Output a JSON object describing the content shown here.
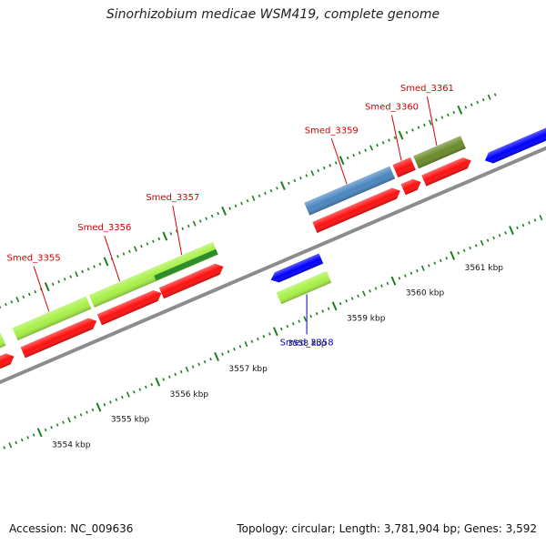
{
  "title": "Sinorhizobium medicae WSM419, complete genome",
  "footer": {
    "accession": "Accession: NC_009636",
    "info": "Topology: circular; Length: 3,781,904 bp; Genes: 3,592"
  },
  "scale": {
    "unit": "kbp",
    "ticks": [
      {
        "pos_kbp": 3554,
        "label": "3554 kbp"
      },
      {
        "pos_kbp": 3555,
        "label": "3555 kbp"
      },
      {
        "pos_kbp": 3556,
        "label": "3556 kbp"
      },
      {
        "pos_kbp": 3557,
        "label": "3557 kbp"
      },
      {
        "pos_kbp": 3558,
        "label": "3558 kbp"
      },
      {
        "pos_kbp": 3559,
        "label": "3559 kbp"
      },
      {
        "pos_kbp": 3560,
        "label": "3560 kbp"
      },
      {
        "pos_kbp": 3561,
        "label": "3561 kbp"
      }
    ]
  },
  "colors": {
    "backbone": "#8c8c8c",
    "tick": "#1e7d1e",
    "cds": "#ff1010",
    "label_forward": "#d40000",
    "label_reverse": "#0000cc",
    "reverse_gene": "#0000ff"
  },
  "genes": [
    {
      "label": "Smed_3355",
      "strand": "forward",
      "start_kbp": 3554.25,
      "end_kbp": 3555.5,
      "color": "#a8f048"
    },
    {
      "label": "Smed_3356",
      "strand": "forward",
      "start_kbp": 3555.55,
      "end_kbp": 3556.6,
      "color": "#a8f048"
    },
    {
      "label": "Smed_3357",
      "strand": "forward",
      "start_kbp": 3556.6,
      "end_kbp": 3557.65,
      "color": "#a8f048",
      "accent_color": "#2e8b2e"
    },
    {
      "label": "Smed_3358",
      "strand": "reverse",
      "start_kbp": 3558.25,
      "end_kbp": 3559.1,
      "color": "#a8f048"
    },
    {
      "label": "Smed_3359",
      "strand": "forward",
      "start_kbp": 3559.2,
      "end_kbp": 3560.65,
      "color": "#4a86c0"
    },
    {
      "label": "Smed_3360",
      "strand": "forward",
      "start_kbp": 3560.7,
      "end_kbp": 3561.0,
      "color": "#ff1010"
    },
    {
      "label": "Smed_3361",
      "strand": "forward",
      "start_kbp": 3561.05,
      "end_kbp": 3561.85,
      "color": "#6b8a2a"
    }
  ]
}
